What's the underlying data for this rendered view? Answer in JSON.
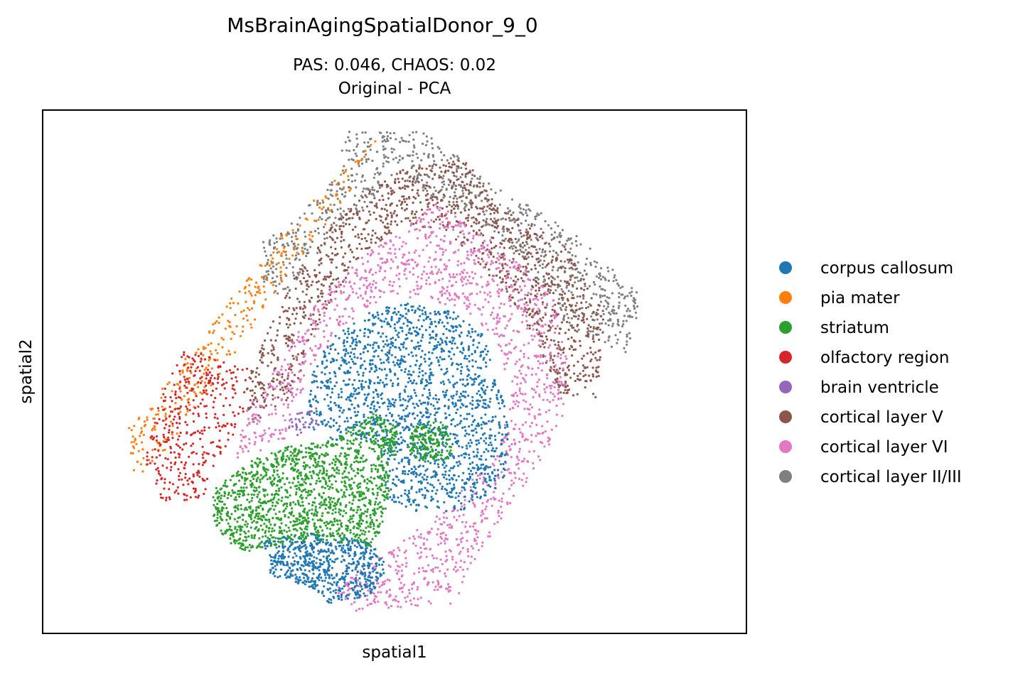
{
  "chart_data": {
    "type": "scatter",
    "title": "MsBrainAgingSpatialDonor_9_0",
    "subtitle_line1": "PAS: 0.046,  CHAOS: 0.02",
    "subtitle_line2": "Original - PCA",
    "xlabel": "spatial1",
    "ylabel": "spatial2",
    "xticks": [],
    "yticks": [],
    "grid": false,
    "legend_position": "right",
    "marker_size_note": "small dots",
    "categories": [
      {
        "name": "corpus callosum",
        "color": "#1f77b4"
      },
      {
        "name": "pia mater",
        "color": "#ff7f0e"
      },
      {
        "name": "striatum",
        "color": "#2ca02c"
      },
      {
        "name": "olfactory region",
        "color": "#d62728"
      },
      {
        "name": "brain ventricle",
        "color": "#9467bd"
      },
      {
        "name": "cortical layer V",
        "color": "#8c564b"
      },
      {
        "name": "cortical layer VI",
        "color": "#e377c2"
      },
      {
        "name": "cortical layer II/III",
        "color": "#7f7f7f"
      }
    ]
  }
}
